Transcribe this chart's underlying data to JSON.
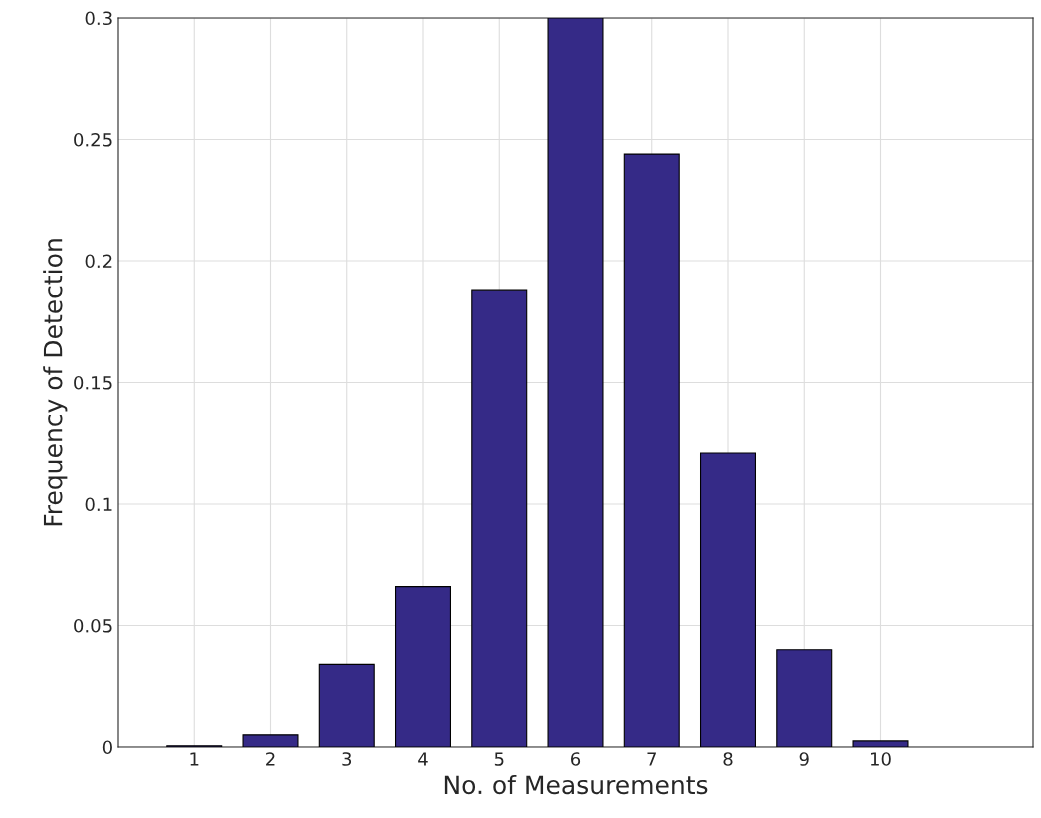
{
  "chart_data": {
    "type": "bar",
    "xlabel": "No. of Measurements",
    "ylabel": "Frequency of Detection",
    "x": [
      1,
      2,
      3,
      4,
      5,
      6,
      7,
      8,
      9,
      10
    ],
    "values": [
      0.0005,
      0.005,
      0.034,
      0.066,
      0.188,
      0.3,
      0.244,
      0.121,
      0.04,
      0.0025
    ],
    "color": "#352a87",
    "xlim": [
      0,
      12
    ],
    "xticks": [
      1,
      2,
      3,
      4,
      5,
      6,
      7,
      8,
      9,
      10
    ],
    "ylim": [
      0,
      0.3
    ],
    "yticks": [
      0,
      0.05,
      0.1,
      0.15,
      0.2,
      0.25,
      0.3
    ],
    "grid": true
  }
}
